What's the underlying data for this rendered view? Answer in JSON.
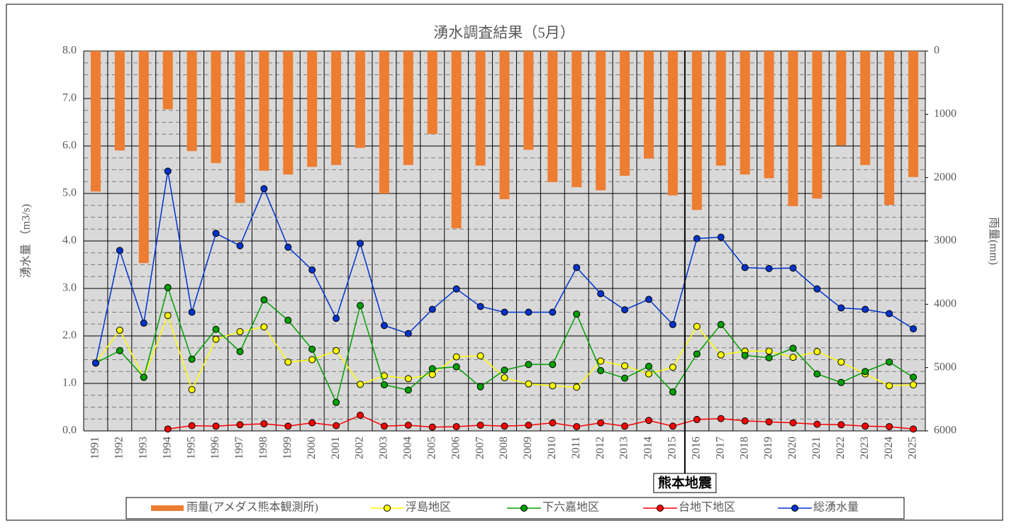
{
  "chart_data": {
    "type": "bar-line",
    "title": "湧水調査結果（5月）",
    "y_label": "湧水量 （m3/s)",
    "y2_label": "雨量(mm)",
    "categories": [
      "1991",
      "1992",
      "1993",
      "1994",
      "1995",
      "1996",
      "1997",
      "1998",
      "1999",
      "2000",
      "2001",
      "2002",
      "2003",
      "2004",
      "2005",
      "2006",
      "2007",
      "2008",
      "2009",
      "2010",
      "2011",
      "2012",
      "2013",
      "2014",
      "2015",
      "2016",
      "2017",
      "2018",
      "2019",
      "2020",
      "2021",
      "2022",
      "2023",
      "2024",
      "2025"
    ],
    "series": [
      {
        "name": "雨量(アメダス熊本観測所)",
        "type": "bar",
        "axis": "y2",
        "color": "#ed7d31",
        "values": [
          2220,
          1570,
          3350,
          920,
          1580,
          1770,
          2400,
          1890,
          1950,
          1830,
          1800,
          1530,
          2250,
          1800,
          1310,
          2800,
          1810,
          2340,
          1560,
          2070,
          2150,
          2200,
          1970,
          1700,
          2280,
          2510,
          1810,
          1950,
          2010,
          2450,
          2330,
          1490,
          1800,
          2430,
          1990
        ]
      },
      {
        "name": "浮島地区",
        "type": "line",
        "color": "#ffff00",
        "values": [
          1.43,
          2.12,
          1.13,
          2.43,
          0.87,
          1.93,
          2.09,
          2.19,
          1.45,
          1.5,
          1.69,
          0.98,
          1.16,
          1.1,
          1.19,
          1.56,
          1.58,
          1.12,
          0.99,
          0.95,
          0.92,
          1.47,
          1.37,
          1.2,
          1.34,
          2.2,
          1.6,
          1.68,
          1.68,
          1.55,
          1.67,
          1.45,
          1.2,
          0.95,
          0.97
        ]
      },
      {
        "name": "下六嘉地区",
        "type": "line",
        "color": "#00a000",
        "values": [
          1.43,
          1.69,
          1.13,
          3.02,
          1.51,
          2.14,
          1.67,
          2.76,
          2.33,
          1.72,
          0.6,
          2.64,
          0.97,
          0.86,
          1.31,
          1.35,
          0.93,
          1.28,
          1.4,
          1.4,
          2.46,
          1.27,
          1.11,
          1.36,
          0.82,
          1.62,
          2.24,
          1.59,
          1.54,
          1.74,
          1.2,
          1.02,
          1.25,
          1.45,
          1.13
        ]
      },
      {
        "name": "台地下地区",
        "type": "line",
        "color": "#ff0000",
        "values": [
          null,
          null,
          null,
          0.04,
          0.11,
          0.1,
          0.13,
          0.15,
          0.1,
          0.17,
          0.11,
          0.33,
          0.1,
          0.12,
          0.08,
          0.09,
          0.12,
          0.1,
          0.12,
          0.17,
          0.09,
          0.17,
          0.1,
          0.22,
          0.1,
          0.24,
          0.26,
          0.21,
          0.19,
          0.17,
          0.14,
          0.13,
          0.1,
          0.09,
          0.04
        ]
      },
      {
        "name": "総湧水量",
        "type": "line",
        "color": "#0033cc",
        "values": [
          1.43,
          3.8,
          2.27,
          5.47,
          2.5,
          4.16,
          3.9,
          5.1,
          3.87,
          3.39,
          2.37,
          3.95,
          2.22,
          2.05,
          2.56,
          2.99,
          2.62,
          2.5,
          2.5,
          2.5,
          3.44,
          2.89,
          2.55,
          2.77,
          2.24,
          4.05,
          4.08,
          3.44,
          3.42,
          3.43,
          2.99,
          2.59,
          2.56,
          2.47,
          2.15
        ]
      }
    ],
    "ylim": [
      0,
      8
    ],
    "yticks": [
      {
        "value": 0,
        "label": "0.0"
      },
      {
        "value": 1,
        "label": "1.0"
      },
      {
        "value": 2,
        "label": "2.0"
      },
      {
        "value": 3,
        "label": "3.0"
      },
      {
        "value": 4,
        "label": "4.0"
      },
      {
        "value": 5,
        "label": "5.0"
      },
      {
        "value": 6,
        "label": "6.0"
      },
      {
        "value": 7,
        "label": "7.0"
      },
      {
        "value": 8,
        "label": "8.0"
      }
    ],
    "minor_yticks": [
      0.25,
      0.5,
      0.75,
      1.25,
      1.5,
      1.75,
      2.25,
      2.5,
      2.75,
      3.25,
      3.5,
      3.75,
      4.25,
      4.5,
      4.75,
      5.25,
      5.5,
      5.75,
      6.25,
      6.5,
      6.75,
      7.25,
      7.5,
      7.75
    ],
    "y2lim": [
      0,
      6000
    ],
    "y2_inverted": true,
    "y2ticks": [
      0,
      1000,
      2000,
      3000,
      4000,
      5000,
      6000
    ],
    "grid": true,
    "legend": "bottom",
    "annotation": {
      "text": "熊本地震",
      "category": "2016"
    }
  }
}
